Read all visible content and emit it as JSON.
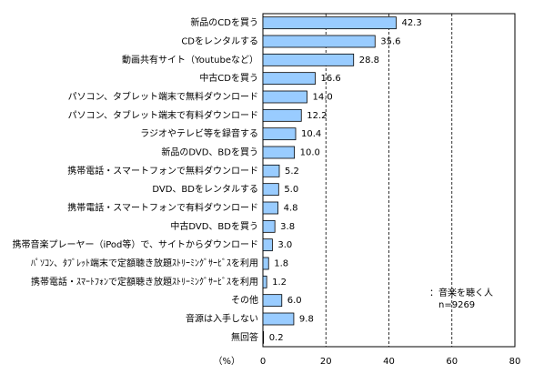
{
  "chart_data": {
    "type": "hbar",
    "categories": [
      "新品のCDを買う",
      "CDをレンタルする",
      "動画共有サイト（Youtubeなど）",
      "中古CDを買う",
      "パソコン、タブレット端末で無料ダウンロード",
      "パソコン、タブレット端末で有料ダウンロード",
      "ラジオやテレビ等を録音する",
      "新品のDVD、BDを買う",
      "携帯電話・スマートフォンで無料ダウンロード",
      "DVD、BDをレンタルする",
      "携帯電話・スマートフォンで有料ダウンロード",
      "中古DVD、BDを買う",
      "携帯音楽プレーヤー（iPod等）で、サイトからダウンロード",
      "ﾊﾟｿｺﾝ、ﾀﾌﾞﾚｯﾄ端末で定額聴き放題ｽﾄﾘｰﾐﾝｸﾞｻｰﾋﾞｽを利用",
      "携帯電話・ｽﾏｰﾄﾌｫﾝで定額聴き放題ｽﾄﾘｰﾐﾝｸﾞｻｰﾋﾞｽを利用",
      "その他",
      "音源は入手しない",
      "無回答"
    ],
    "values": [
      42.3,
      35.6,
      28.8,
      16.6,
      14.0,
      12.2,
      10.4,
      10.0,
      5.2,
      5.0,
      4.8,
      3.8,
      3.0,
      1.8,
      1.2,
      6.0,
      9.8,
      0.2
    ],
    "value_labels": [
      "42.3",
      "35.6",
      "28.8",
      "16.6",
      "14.0",
      "12.2",
      "10.4",
      "10.0",
      "5.2",
      "5.0",
      "4.8",
      "3.8",
      "3.0",
      "1.8",
      "1.2",
      "6.0",
      "9.8",
      "0.2"
    ],
    "color": "#99ccff",
    "xlim": [
      0,
      80
    ],
    "xticks": [
      0,
      20,
      40,
      60,
      80
    ],
    "grid": true,
    "x_label": "（%）",
    "annotations": [
      "：音楽を聴く人",
      "n=9269"
    ]
  }
}
